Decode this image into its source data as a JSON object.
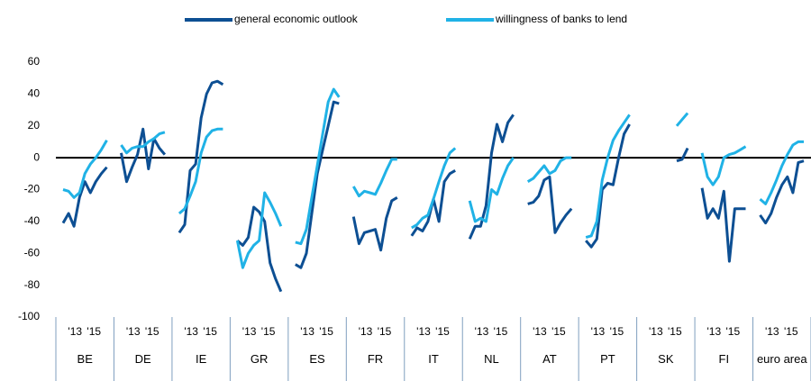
{
  "chart_data": {
    "type": "line",
    "categories": [
      "BE",
      "DE",
      "IE",
      "GR",
      "ES",
      "FR",
      "IT",
      "NL",
      "AT",
      "PT",
      "SK",
      "FI",
      "euro area"
    ],
    "period_labels": [
      "'13",
      "'15"
    ],
    "ylim": [
      -100,
      60
    ],
    "yticks": [
      -100,
      -80,
      -60,
      -40,
      -20,
      0,
      20,
      40,
      60
    ],
    "zero_line": true,
    "legend": "top",
    "series": [
      {
        "name": "general economic outlook",
        "color": "#0d4f93",
        "values": [
          [
            -41,
            -35,
            -43,
            -25,
            -15,
            -22,
            -15,
            -10,
            -6
          ],
          [
            3,
            -15,
            -6,
            2,
            18,
            -7,
            12,
            6,
            2
          ],
          [
            -47,
            -42,
            -8,
            -4,
            25,
            40,
            47,
            48,
            46
          ],
          [
            -52,
            -55,
            -50,
            -31,
            -34,
            -40,
            -66,
            -76,
            -84
          ],
          [
            -67,
            -69,
            -60,
            -35,
            -10,
            5,
            20,
            35,
            34
          ],
          [
            -37,
            -54,
            -47,
            -46,
            -45,
            -58,
            -38,
            -27,
            -25
          ],
          [
            -49,
            -44,
            -46,
            -40,
            -26,
            -40,
            -15,
            -10,
            -8
          ],
          [
            -51,
            -43,
            -43,
            -30,
            3,
            21,
            10,
            22,
            27
          ],
          [
            -29,
            -28,
            -24,
            -14,
            -12,
            -47,
            -41,
            -36,
            -32
          ],
          [
            -52,
            -56,
            -51,
            -20,
            -16,
            -17,
            0,
            15,
            21
          ],
          [
            null,
            null,
            null,
            null,
            null,
            null,
            -2,
            -1,
            6
          ],
          [
            -19,
            -38,
            -32,
            -38,
            -21,
            -65,
            -32,
            -32,
            -32
          ],
          [
            -36,
            -41,
            -35,
            -25,
            -17,
            -12,
            -22,
            -3,
            -2
          ]
        ]
      },
      {
        "name": "willingness of banks to lend",
        "color": "#20b2e6",
        "values": [
          [
            -20,
            -21,
            -25,
            -22,
            -10,
            -4,
            0,
            5,
            11
          ],
          [
            8,
            3,
            6,
            7,
            7,
            10,
            12,
            15,
            16
          ],
          [
            -35,
            -32,
            -24,
            -15,
            3,
            13,
            17,
            18,
            18
          ],
          [
            -52,
            -69,
            -60,
            -55,
            -52,
            -22,
            -28,
            -35,
            -43
          ],
          [
            -53,
            -54,
            -45,
            -25,
            -5,
            15,
            35,
            43,
            38
          ],
          [
            -18,
            -24,
            -21,
            -22,
            -23,
            -16,
            -8,
            -1,
            -1
          ],
          [
            -44,
            -42,
            -38,
            -36,
            -26,
            -15,
            -5,
            3,
            6
          ],
          [
            -27,
            -40,
            -38,
            -40,
            -20,
            -23,
            -13,
            -5,
            0
          ],
          [
            -15,
            -13,
            -9,
            -5,
            -10,
            -8,
            -2,
            0,
            0
          ],
          [
            -50,
            -49,
            -40,
            -14,
            0,
            11,
            17,
            22,
            27
          ],
          [
            null,
            null,
            null,
            null,
            null,
            null,
            20,
            24,
            28
          ],
          [
            3,
            -12,
            -17,
            -12,
            0,
            2,
            3,
            5,
            7
          ],
          [
            -26,
            -29,
            -22,
            -14,
            -5,
            2,
            8,
            10,
            10
          ]
        ]
      }
    ]
  }
}
